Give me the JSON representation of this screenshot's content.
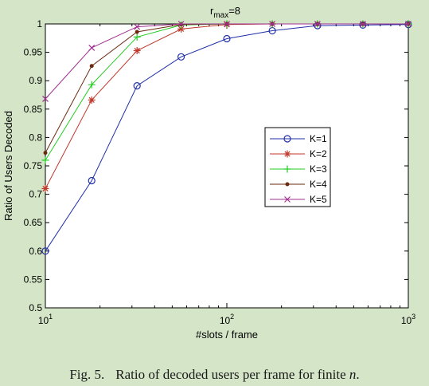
{
  "chart_data": {
    "type": "line",
    "title_base": "r",
    "title_sub": "max",
    "title_tail": "=8",
    "xlabel": "#slots / frame",
    "ylabel": "Ratio of Users Decoded",
    "xscale": "log",
    "xlim": [
      10,
      1000
    ],
    "ylim": [
      0.5,
      1
    ],
    "x_ticks": [
      {
        "base": "10",
        "exp": "1",
        "value": 10
      },
      {
        "base": "10",
        "exp": "2",
        "value": 100
      },
      {
        "base": "10",
        "exp": "3",
        "value": 1000
      }
    ],
    "y_ticks": [
      "0.5",
      "0.55",
      "0.6",
      "0.65",
      "0.7",
      "0.75",
      "0.8",
      "0.85",
      "0.9",
      "0.95",
      "1"
    ],
    "grid": false,
    "legend_position": "center-right",
    "x": [
      10,
      18,
      32,
      56,
      100,
      178,
      316,
      562,
      1000
    ],
    "series": [
      {
        "name": "K=1",
        "color": "#1f2fa8",
        "marker": "circle",
        "values": [
          0.6,
          0.724,
          0.891,
          0.942,
          0.974,
          0.988,
          0.997,
          0.998,
          0.999
        ]
      },
      {
        "name": "K=2",
        "color": "#c0392b",
        "marker": "star",
        "values": [
          0.71,
          0.866,
          0.953,
          0.991,
          0.999,
          1.0,
          1.0,
          1.0,
          1.0
        ]
      },
      {
        "name": "K=3",
        "color": "#22cc22",
        "marker": "plus",
        "values": [
          0.76,
          0.893,
          0.977,
          0.998,
          1.0,
          1.0,
          1.0,
          1.0,
          1.0
        ]
      },
      {
        "name": "K=4",
        "color": "#6b2a10",
        "marker": "dot",
        "values": [
          0.773,
          0.926,
          0.986,
          0.999,
          1.0,
          1.0,
          1.0,
          1.0,
          1.0
        ]
      },
      {
        "name": "K=5",
        "color": "#a0308f",
        "marker": "x",
        "values": [
          0.868,
          0.958,
          0.995,
          1.0,
          1.0,
          1.0,
          1.0,
          1.0,
          1.0
        ]
      }
    ]
  },
  "caption": {
    "number": "Fig. 5.",
    "text": "Ratio of decoded users per frame for finite",
    "variable": "n",
    "end": "."
  }
}
